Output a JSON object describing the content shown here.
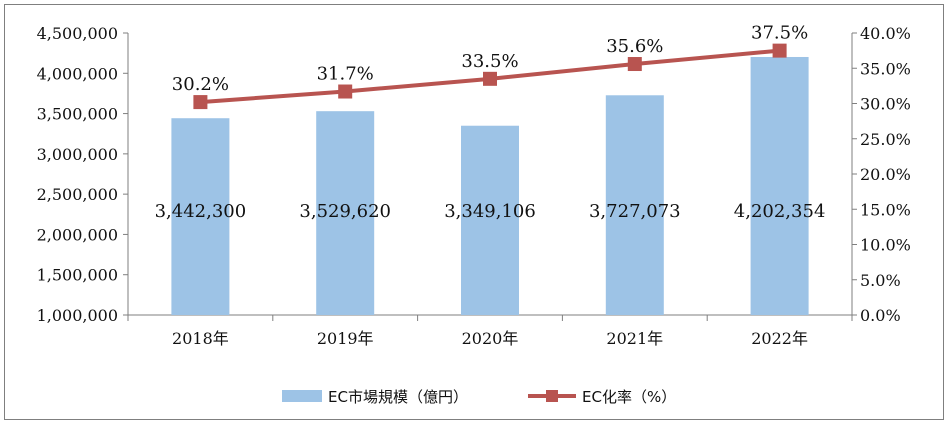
{
  "chart_data": {
    "type": "bar+line",
    "categories": [
      "2018年",
      "2019年",
      "2020年",
      "2021年",
      "2022年"
    ],
    "series": [
      {
        "name": "EC市場規模（億円）",
        "type": "bar",
        "axis": "left",
        "values": [
          3442300,
          3529620,
          3349106,
          3727073,
          4202354
        ],
        "labels": [
          "3,442,300",
          "3,529,620",
          "3,349,106",
          "3,727,073",
          "4,202,354"
        ],
        "color": "#9dc3e6"
      },
      {
        "name": "EC化率（%）",
        "type": "line",
        "axis": "right",
        "values": [
          30.2,
          31.7,
          33.5,
          35.6,
          37.5
        ],
        "labels": [
          "30.2%",
          "31.7%",
          "33.5%",
          "35.6%",
          "37.5%"
        ],
        "color": "#b85450"
      }
    ],
    "y_left": {
      "ylim": [
        1000000,
        4500000
      ],
      "ticks": [
        1000000,
        1500000,
        2000000,
        2500000,
        3000000,
        3500000,
        4000000,
        4500000
      ],
      "tick_labels": [
        "1,000,000",
        "1,500,000",
        "2,000,000",
        "2,500,000",
        "3,000,000",
        "3,500,000",
        "4,000,000",
        "4,500,000"
      ]
    },
    "y_right": {
      "ylim": [
        0,
        40
      ],
      "ticks": [
        0,
        5,
        10,
        15,
        20,
        25,
        30,
        35,
        40
      ],
      "tick_labels": [
        "0.0%",
        "5.0%",
        "10.0%",
        "15.0%",
        "20.0%",
        "25.0%",
        "30.0%",
        "35.0%",
        "40.0%"
      ]
    },
    "grid": false,
    "legend_position": "bottom-center"
  }
}
